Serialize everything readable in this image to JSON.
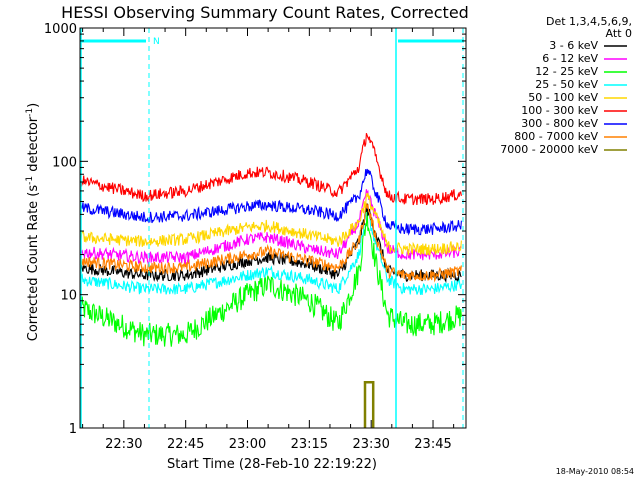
{
  "chart_data": {
    "type": "line",
    "title": "HESSI Observing Summary Count Rates, Corrected",
    "xlabel": "Start Time (28-Feb-10 22:19:22)",
    "ylabel_main": "Corrected Count Rate (s",
    "ylabel_sup1": "-1",
    "ylabel_mid": " detector",
    "ylabel_sup2": "-1",
    "ylabel_end": ")",
    "y_scale": "log",
    "xlim": [
      "22:19:22",
      "23:53:00"
    ],
    "ylim": [
      1,
      1000
    ],
    "x_ticks": [
      "22:30",
      "22:45",
      "23:00",
      "23:15",
      "23:30",
      "23:45"
    ],
    "y_ticks": [
      "1",
      "10",
      "100",
      "1000"
    ],
    "legend_header_1": "Det 1,3,4,5,6,9,",
    "legend_header_2": "Att 0",
    "legend_position": "right",
    "footer_timestamp": "18-May-2010 08:54",
    "top_bar_label": "N",
    "series": [
      {
        "name": "3 - 6 keV",
        "color": "#000000",
        "x": [
          "22:19:22",
          "22:35",
          "22:45",
          "23:00",
          "23:05",
          "23:15",
          "23:22",
          "23:27",
          "23:29",
          "23:31",
          "23:34",
          "23:38",
          "23:45",
          "23:52"
        ],
        "values": [
          16,
          14,
          14,
          18,
          19,
          17,
          14,
          25,
          45,
          30,
          15,
          14,
          14,
          14
        ]
      },
      {
        "name": "6 - 12 keV",
        "color": "#ff00ff",
        "x": [
          "22:19:22",
          "22:35",
          "22:45",
          "23:00",
          "23:05",
          "23:15",
          "23:22",
          "23:27",
          "23:29",
          "23:31",
          "23:34",
          "23:38",
          "23:45",
          "23:52"
        ],
        "values": [
          21,
          19,
          19,
          26,
          27,
          22,
          20,
          35,
          58,
          40,
          22,
          20,
          20,
          21
        ]
      },
      {
        "name": "12 - 25 keV",
        "color": "#00ff00",
        "x": [
          "22:19:22",
          "22:35",
          "22:45",
          "23:00",
          "23:05",
          "23:15",
          "23:22",
          "23:27",
          "23:29",
          "23:31",
          "23:34",
          "23:38",
          "23:45",
          "23:52"
        ],
        "values": [
          8,
          5,
          5,
          10,
          12,
          9,
          6,
          15,
          40,
          18,
          7,
          6,
          6,
          7
        ]
      },
      {
        "name": "25 - 50 keV",
        "color": "#00ffff",
        "x": [
          "22:19:22",
          "22:35",
          "22:45",
          "23:00",
          "23:05",
          "23:15",
          "23:22",
          "23:27",
          "23:29",
          "23:31",
          "23:34",
          "23:38",
          "23:45",
          "23:52"
        ],
        "values": [
          13,
          11,
          11,
          14,
          15,
          13,
          11,
          20,
          42,
          25,
          13,
          11,
          11,
          12
        ]
      },
      {
        "name": "50 - 100 keV",
        "color": "#ffd700",
        "x": [
          "22:19:22",
          "22:35",
          "22:45",
          "23:00",
          "23:05",
          "23:15",
          "23:22",
          "23:27",
          "23:29",
          "23:31",
          "23:34",
          "23:38",
          "23:45",
          "23:52"
        ],
        "values": [
          27,
          25,
          26,
          32,
          33,
          28,
          25,
          35,
          55,
          40,
          23,
          22,
          22,
          23
        ]
      },
      {
        "name": "100 - 300 keV",
        "color": "#ff0000",
        "x": [
          "22:19:22",
          "22:35",
          "22:45",
          "23:00",
          "23:05",
          "23:15",
          "23:22",
          "23:27",
          "23:29",
          "23:31",
          "23:34",
          "23:38",
          "23:45",
          "23:52"
        ],
        "values": [
          72,
          55,
          60,
          82,
          83,
          70,
          58,
          90,
          165,
          110,
          55,
          52,
          52,
          57
        ]
      },
      {
        "name": "300 - 800 keV",
        "color": "#0000ff",
        "x": [
          "22:19:22",
          "22:35",
          "22:45",
          "23:00",
          "23:05",
          "23:15",
          "23:22",
          "23:27",
          "23:29",
          "23:31",
          "23:34",
          "23:38",
          "23:45",
          "23:52"
        ],
        "values": [
          45,
          38,
          39,
          46,
          47,
          43,
          39,
          55,
          88,
          60,
          33,
          31,
          31,
          33
        ]
      },
      {
        "name": "800 - 7000 keV",
        "color": "#ff8000",
        "x": [
          "22:19:22",
          "22:35",
          "22:45",
          "23:00",
          "23:05",
          "23:15",
          "23:22",
          "23:27",
          "23:29",
          "23:31",
          "23:34",
          "23:38",
          "23:45",
          "23:52"
        ],
        "values": [
          18,
          16,
          16,
          20,
          21,
          18,
          16,
          25,
          48,
          28,
          15,
          14,
          14,
          15
        ]
      },
      {
        "name": "7000 - 20000 keV",
        "color": "#808000",
        "x": [
          "23:28:30",
          "23:28:30",
          "23:30:30",
          "23:30:30"
        ],
        "values": [
          1,
          2.2,
          2.2,
          1
        ]
      }
    ]
  }
}
